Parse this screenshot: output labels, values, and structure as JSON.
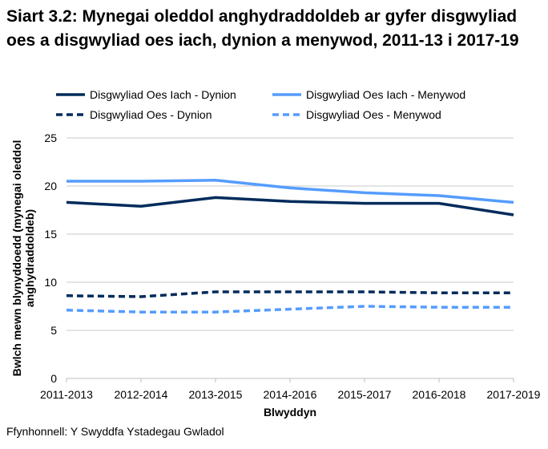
{
  "chart_data": {
    "type": "line",
    "title": "Siart 3.2: Mynegai oleddol anghydraddoldeb ar gyfer disgwyliad oes a disgwyliad oes iach, dynion a menywod, 2011-13 i 2017-19",
    "xlabel": "Blwyddyn",
    "ylabel": "Bwlch mewn blynyddoedd  (mynegai oleddol anghydraddoldeb)",
    "ylim": [
      0,
      25
    ],
    "yticks": [
      0,
      5,
      10,
      15,
      20,
      25
    ],
    "grid": true,
    "legend_position": "top",
    "categories": [
      "2011-2013",
      "2012-2014",
      "2013-2015",
      "2014-2016",
      "2015-2017",
      "2016-2018",
      "2017-2019"
    ],
    "series": [
      {
        "name": "Disgwyliad Oes Iach - Dynion",
        "color": "#002b5c",
        "dash": false,
        "values": [
          18.3,
          17.9,
          18.8,
          18.4,
          18.2,
          18.2,
          17.0
        ]
      },
      {
        "name": "Disgwyliad Oes Iach - Menywod",
        "color": "#559cff",
        "dash": false,
        "values": [
          20.5,
          20.5,
          20.6,
          19.8,
          19.3,
          19.0,
          18.3
        ]
      },
      {
        "name": "Disgwyliad Oes - Dynion",
        "color": "#002b5c",
        "dash": true,
        "values": [
          8.6,
          8.5,
          9.0,
          9.0,
          9.0,
          8.9,
          8.9
        ]
      },
      {
        "name": "Disgwyliad Oes - Menywod",
        "color": "#559cff",
        "dash": true,
        "values": [
          7.1,
          6.9,
          6.9,
          7.2,
          7.5,
          7.4,
          7.4
        ]
      }
    ]
  },
  "source": "Ffynhonnell: Y Swyddfa Ystadegau Gwladol"
}
